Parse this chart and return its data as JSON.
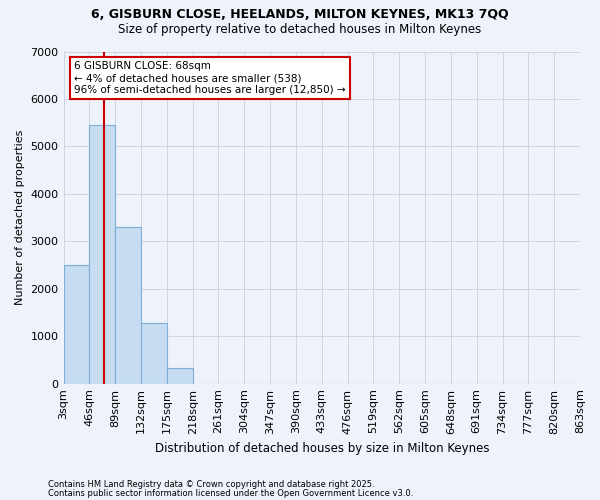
{
  "title1": "6, GISBURN CLOSE, HEELANDS, MILTON KEYNES, MK13 7QQ",
  "title2": "Size of property relative to detached houses in Milton Keynes",
  "xlabel": "Distribution of detached houses by size in Milton Keynes",
  "ylabel": "Number of detached properties",
  "bar_values": [
    2500,
    5450,
    3300,
    1280,
    330,
    0,
    0,
    0,
    0,
    0,
    0,
    0,
    0,
    0,
    0,
    0,
    0,
    0,
    0,
    0
  ],
  "categories": [
    "3sqm",
    "46sqm",
    "89sqm",
    "132sqm",
    "175sqm",
    "218sqm",
    "261sqm",
    "304sqm",
    "347sqm",
    "390sqm",
    "433sqm",
    "476sqm",
    "519sqm",
    "562sqm",
    "605sqm",
    "648sqm",
    "691sqm",
    "734sqm",
    "777sqm",
    "820sqm",
    "863sqm"
  ],
  "bar_color": "#c6dcf0",
  "bar_edge_color": "#7bafd4",
  "vline_x": 1.56,
  "vline_color": "#cc0000",
  "annotation_text": "6 GISBURN CLOSE: 68sqm\n← 4% of detached houses are smaller (538)\n96% of semi-detached houses are larger (12,850) →",
  "box_color": "#cc0000",
  "ylim": [
    0,
    7000
  ],
  "yticks": [
    0,
    1000,
    2000,
    3000,
    4000,
    5000,
    6000,
    7000
  ],
  "background_color": "#eef2fb",
  "grid_color": "#c0c8d8",
  "footer1": "Contains HM Land Registry data © Crown copyright and database right 2025.",
  "footer2": "Contains public sector information licensed under the Open Government Licence v3.0."
}
